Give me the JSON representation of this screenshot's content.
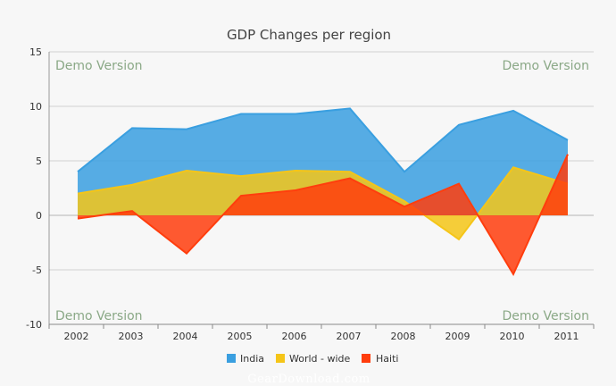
{
  "chart_data": {
    "type": "area",
    "title": "GDP Changes per region",
    "categories": [
      "2002",
      "2003",
      "2004",
      "2005",
      "2006",
      "2007",
      "2008",
      "2009",
      "2010",
      "2011"
    ],
    "series": [
      {
        "name": "India",
        "color": "#3a9fe0",
        "values": [
          4.0,
          8.0,
          7.9,
          9.3,
          9.3,
          9.8,
          4.0,
          8.3,
          9.6,
          6.9
        ]
      },
      {
        "name": "World - wide",
        "color": "#f5c518",
        "values": [
          2.0,
          2.8,
          4.1,
          3.6,
          4.1,
          4.0,
          1.3,
          -2.2,
          4.4,
          2.9
        ]
      },
      {
        "name": "Haiti",
        "color": "#ff3d0d",
        "values": [
          -0.3,
          0.4,
          -3.5,
          1.8,
          2.3,
          3.4,
          0.8,
          2.9,
          -5.4,
          5.6
        ]
      }
    ],
    "y_ticks": [
      "15",
      "10",
      "5",
      "0",
      "-5",
      "-10"
    ],
    "ylim": [
      -10,
      15
    ],
    "grid": true,
    "legend": "bottom-center"
  },
  "watermarks": [
    "Demo Version",
    "Demo Version",
    "Demo Version",
    "Demo Version"
  ],
  "credit": "GearDownload.com"
}
